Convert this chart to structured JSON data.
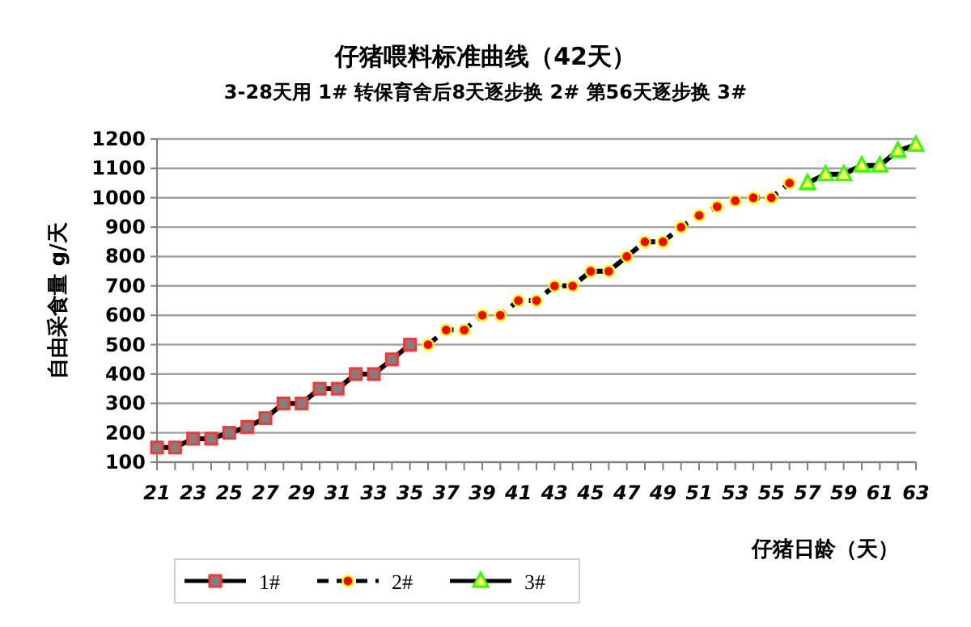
{
  "chart_data": {
    "type": "line",
    "title": "仔猪喂料标准曲线（42天）",
    "subtitle": "3-28天用 1#   转保育舍后8天逐步换 2#   第56天逐步换 3#",
    "xlabel": "仔猪日龄（天）",
    "ylabel": "自由采食量 g/天",
    "xlim": [
      21,
      63
    ],
    "xticks": [
      21,
      {
        "value": 22,
        "label": null
      },
      23,
      {
        "value": 24,
        "label": null
      },
      25,
      {
        "value": 26,
        "label": null
      },
      27,
      {
        "value": 28,
        "label": null
      },
      29,
      {
        "value": 30,
        "label": null
      },
      31,
      {
        "value": 32,
        "label": null
      },
      33,
      {
        "value": 34,
        "label": null
      },
      35,
      {
        "value": 36,
        "label": null
      },
      37,
      {
        "value": 38,
        "label": null
      },
      39,
      {
        "value": 40,
        "label": null
      },
      41,
      {
        "value": 42,
        "label": null
      },
      43,
      {
        "value": 44,
        "label": null
      },
      45,
      {
        "value": 46,
        "label": null
      },
      47,
      {
        "value": 48,
        "label": null
      },
      49,
      {
        "value": 50,
        "label": null
      },
      51,
      {
        "value": 52,
        "label": null
      },
      53,
      {
        "value": 54,
        "label": null
      },
      55,
      {
        "value": 56,
        "label": null
      },
      57,
      {
        "value": 58,
        "label": null
      },
      59,
      {
        "value": 60,
        "label": null
      },
      61,
      {
        "value": 62,
        "label": null
      },
      63
    ],
    "ylim": [
      100,
      1200
    ],
    "yticks": [
      100,
      200,
      300,
      400,
      500,
      600,
      700,
      800,
      900,
      1000,
      1100,
      1200
    ],
    "grid": "y",
    "legend": "bottom",
    "series": [
      {
        "name": "1#",
        "color": "#ff3333",
        "marker": "square",
        "line_style": "solid",
        "x": [
          21,
          22,
          23,
          24,
          25,
          26,
          27,
          28,
          29,
          30,
          31,
          32,
          33,
          34,
          35
        ],
        "values": [
          150,
          150,
          180,
          180,
          200,
          220,
          250,
          300,
          300,
          350,
          350,
          400,
          400,
          450,
          500
        ]
      },
      {
        "name": "2#",
        "color": "#ff0000",
        "marker": "circle",
        "line_style": "dashed",
        "x": [
          36,
          37,
          38,
          39,
          40,
          41,
          42,
          43,
          44,
          45,
          46,
          47,
          48,
          49,
          50,
          51,
          52,
          53,
          54,
          55,
          56
        ],
        "values": [
          500,
          550,
          550,
          600,
          600,
          650,
          650,
          700,
          700,
          750,
          750,
          800,
          850,
          850,
          900,
          940,
          970,
          990,
          1000,
          1000,
          1050
        ]
      },
      {
        "name": "3#",
        "color": "#33ff00",
        "marker": "triangle",
        "line_style": "solid",
        "x": [
          57,
          58,
          59,
          60,
          61,
          62,
          63
        ],
        "values": [
          1050,
          1080,
          1080,
          1110,
          1110,
          1160,
          1180
        ]
      }
    ]
  }
}
